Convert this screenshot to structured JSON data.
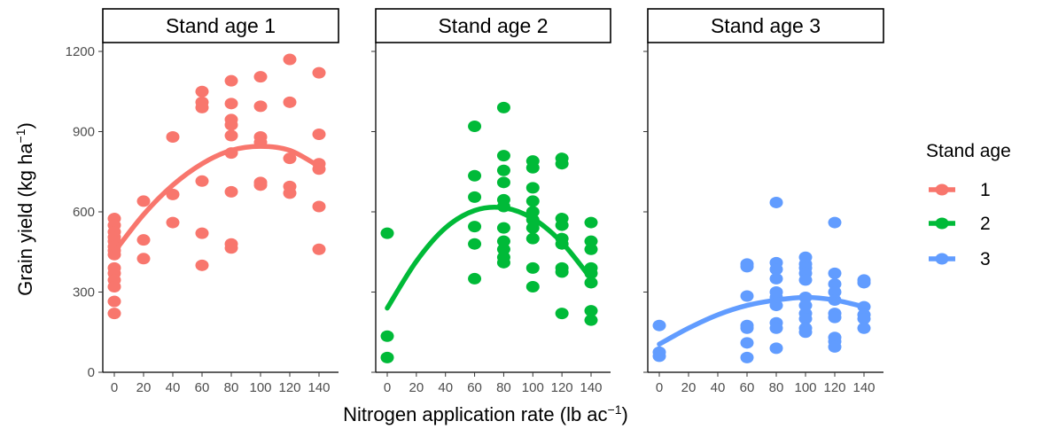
{
  "chart_data": {
    "type": "scatter",
    "ylabel": "Grain yield (kg ha",
    "ylabel_sup": "−1",
    "ylabel_close": ")",
    "xlabel": "Nitrogen application rate (lb ac",
    "xlabel_sup": "−1",
    "xlabel_close": ")",
    "x_ticks": [
      "0",
      "20",
      "40",
      "60",
      "80",
      "100",
      "120",
      "140"
    ],
    "y_ticks": [
      "0",
      "300",
      "600",
      "900",
      "1200"
    ],
    "ylim": [
      0,
      1200
    ],
    "xlim": [
      0,
      140
    ],
    "legend": {
      "title": "Stand age",
      "placement": "right",
      "entries": [
        "1",
        "2",
        "3"
      ]
    },
    "facets": [
      {
        "label": "Stand age 1",
        "series": "1",
        "color": "#F8766D",
        "points": [
          [
            0,
            575
          ],
          [
            0,
            550
          ],
          [
            0,
            525
          ],
          [
            0,
            505
          ],
          [
            0,
            490
          ],
          [
            0,
            470
          ],
          [
            0,
            455
          ],
          [
            0,
            440
          ],
          [
            0,
            390
          ],
          [
            0,
            370
          ],
          [
            0,
            345
          ],
          [
            0,
            320
          ],
          [
            0,
            265
          ],
          [
            0,
            220
          ],
          [
            20,
            640
          ],
          [
            20,
            495
          ],
          [
            20,
            425
          ],
          [
            40,
            880
          ],
          [
            40,
            665
          ],
          [
            40,
            560
          ],
          [
            60,
            1050
          ],
          [
            60,
            1010
          ],
          [
            60,
            990
          ],
          [
            60,
            715
          ],
          [
            60,
            520
          ],
          [
            60,
            400
          ],
          [
            80,
            1090
          ],
          [
            80,
            1005
          ],
          [
            80,
            945
          ],
          [
            80,
            925
          ],
          [
            80,
            885
          ],
          [
            80,
            820
          ],
          [
            80,
            675
          ],
          [
            80,
            480
          ],
          [
            80,
            465
          ],
          [
            100,
            1105
          ],
          [
            100,
            995
          ],
          [
            100,
            880
          ],
          [
            100,
            860
          ],
          [
            100,
            710
          ],
          [
            100,
            700
          ],
          [
            120,
            1170
          ],
          [
            120,
            1010
          ],
          [
            120,
            800
          ],
          [
            120,
            695
          ],
          [
            120,
            670
          ],
          [
            140,
            1120
          ],
          [
            140,
            890
          ],
          [
            140,
            780
          ],
          [
            140,
            760
          ],
          [
            140,
            620
          ],
          [
            140,
            460
          ]
        ],
        "curve": [
          [
            0,
            450
          ],
          [
            20,
            590
          ],
          [
            40,
            700
          ],
          [
            60,
            780
          ],
          [
            80,
            830
          ],
          [
            100,
            845
          ],
          [
            120,
            830
          ],
          [
            140,
            770
          ]
        ]
      },
      {
        "label": "Stand age 2",
        "series": "2",
        "color": "#00BA38",
        "points": [
          [
            0,
            520
          ],
          [
            0,
            135
          ],
          [
            0,
            55
          ],
          [
            60,
            920
          ],
          [
            60,
            735
          ],
          [
            60,
            655
          ],
          [
            60,
            545
          ],
          [
            60,
            480
          ],
          [
            60,
            350
          ],
          [
            80,
            990
          ],
          [
            80,
            810
          ],
          [
            80,
            755
          ],
          [
            80,
            710
          ],
          [
            80,
            645
          ],
          [
            80,
            620
          ],
          [
            80,
            540
          ],
          [
            80,
            490
          ],
          [
            80,
            460
          ],
          [
            80,
            430
          ],
          [
            80,
            410
          ],
          [
            100,
            790
          ],
          [
            100,
            765
          ],
          [
            100,
            690
          ],
          [
            100,
            640
          ],
          [
            100,
            600
          ],
          [
            100,
            570
          ],
          [
            100,
            540
          ],
          [
            100,
            500
          ],
          [
            100,
            390
          ],
          [
            100,
            320
          ],
          [
            120,
            800
          ],
          [
            120,
            780
          ],
          [
            120,
            575
          ],
          [
            120,
            550
          ],
          [
            120,
            500
          ],
          [
            120,
            480
          ],
          [
            120,
            390
          ],
          [
            120,
            375
          ],
          [
            120,
            220
          ],
          [
            140,
            560
          ],
          [
            140,
            490
          ],
          [
            140,
            460
          ],
          [
            140,
            390
          ],
          [
            140,
            370
          ],
          [
            140,
            335
          ],
          [
            140,
            230
          ],
          [
            140,
            195
          ]
        ],
        "curve": [
          [
            0,
            240
          ],
          [
            20,
            415
          ],
          [
            40,
            540
          ],
          [
            60,
            605
          ],
          [
            80,
            615
          ],
          [
            100,
            575
          ],
          [
            120,
            485
          ],
          [
            140,
            350
          ]
        ]
      },
      {
        "label": "Stand age 3",
        "series": "3",
        "color": "#619CFF",
        "points": [
          [
            0,
            175
          ],
          [
            0,
            75
          ],
          [
            0,
            60
          ],
          [
            60,
            405
          ],
          [
            60,
            395
          ],
          [
            60,
            285
          ],
          [
            60,
            175
          ],
          [
            60,
            165
          ],
          [
            60,
            110
          ],
          [
            60,
            55
          ],
          [
            80,
            635
          ],
          [
            80,
            410
          ],
          [
            80,
            385
          ],
          [
            80,
            350
          ],
          [
            80,
            300
          ],
          [
            80,
            280
          ],
          [
            80,
            250
          ],
          [
            80,
            185
          ],
          [
            80,
            165
          ],
          [
            80,
            90
          ],
          [
            100,
            430
          ],
          [
            100,
            405
          ],
          [
            100,
            390
          ],
          [
            100,
            370
          ],
          [
            100,
            345
          ],
          [
            100,
            280
          ],
          [
            100,
            250
          ],
          [
            100,
            220
          ],
          [
            100,
            200
          ],
          [
            100,
            165
          ],
          [
            100,
            150
          ],
          [
            120,
            560
          ],
          [
            120,
            370
          ],
          [
            120,
            330
          ],
          [
            120,
            300
          ],
          [
            120,
            270
          ],
          [
            120,
            220
          ],
          [
            120,
            205
          ],
          [
            120,
            130
          ],
          [
            120,
            115
          ],
          [
            120,
            95
          ],
          [
            140,
            345
          ],
          [
            140,
            335
          ],
          [
            140,
            245
          ],
          [
            140,
            215
          ],
          [
            140,
            200
          ],
          [
            140,
            165
          ]
        ],
        "curve": [
          [
            0,
            105
          ],
          [
            20,
            165
          ],
          [
            40,
            215
          ],
          [
            60,
            250
          ],
          [
            80,
            270
          ],
          [
            100,
            280
          ],
          [
            120,
            270
          ],
          [
            140,
            245
          ]
        ]
      }
    ]
  }
}
